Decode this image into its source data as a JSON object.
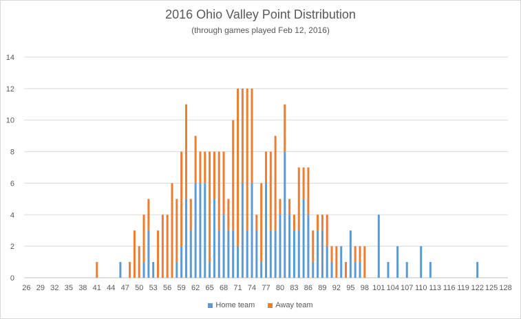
{
  "chart_data": {
    "type": "bar",
    "stacked": true,
    "title": "2016 Ohio Valley Point Distribution",
    "subtitle": "(through games played Feb 12, 2016)",
    "xlabel": "",
    "ylabel": "",
    "ylim": [
      0,
      14
    ],
    "yticks": [
      0,
      2,
      4,
      6,
      8,
      10,
      12,
      14
    ],
    "grid": true,
    "legend_position": "bottom",
    "x_range": [
      26,
      128
    ],
    "xtick_labels": [
      "26",
      "29",
      "32",
      "35",
      "38",
      "41",
      "44",
      "47",
      "50",
      "53",
      "56",
      "59",
      "62",
      "65",
      "68",
      "71",
      "74",
      "77",
      "80",
      "83",
      "86",
      "89",
      "92",
      "95",
      "98",
      "101",
      "104",
      "107",
      "110",
      "113",
      "116",
      "119",
      "122",
      "125",
      "128"
    ],
    "x": [
      41,
      46,
      48,
      49,
      50,
      51,
      52,
      53,
      54,
      55,
      56,
      57,
      58,
      59,
      60,
      61,
      62,
      63,
      64,
      65,
      66,
      67,
      68,
      69,
      70,
      71,
      72,
      73,
      74,
      75,
      76,
      77,
      78,
      79,
      80,
      81,
      82,
      83,
      84,
      85,
      86,
      87,
      88,
      89,
      90,
      91,
      92,
      93,
      94,
      95,
      96,
      97,
      98,
      101,
      103,
      105,
      107,
      110,
      112,
      122
    ],
    "series": [
      {
        "name": "Home team",
        "color": "#5b9bd5",
        "values": [
          0,
          1,
          0,
          0,
          0,
          1,
          3,
          1,
          0,
          0,
          0,
          0,
          1,
          2,
          5,
          3,
          6,
          6,
          6,
          1,
          5,
          3,
          4,
          3,
          3,
          2,
          6,
          3,
          6,
          3,
          1,
          6,
          3,
          3,
          4,
          8,
          4,
          3,
          3,
          5,
          4,
          1,
          3,
          3,
          2,
          1,
          0,
          2,
          0,
          3,
          1,
          1,
          0,
          4,
          1,
          2,
          1,
          2,
          1,
          1
        ]
      },
      {
        "name": "Away team",
        "color": "#ed7d31",
        "values": [
          1,
          0,
          1,
          3,
          2,
          3,
          2,
          0,
          3,
          4,
          4,
          6,
          4,
          6,
          6,
          2,
          3,
          2,
          2,
          7,
          3,
          5,
          4,
          2,
          7,
          10,
          6,
          9,
          6,
          1,
          5,
          2,
          5,
          6,
          1,
          3,
          1,
          1,
          4,
          2,
          3,
          2,
          1,
          1,
          2,
          1,
          2,
          0,
          1,
          0,
          1,
          1,
          2,
          0,
          0,
          0,
          0,
          0,
          0,
          0
        ]
      }
    ]
  }
}
